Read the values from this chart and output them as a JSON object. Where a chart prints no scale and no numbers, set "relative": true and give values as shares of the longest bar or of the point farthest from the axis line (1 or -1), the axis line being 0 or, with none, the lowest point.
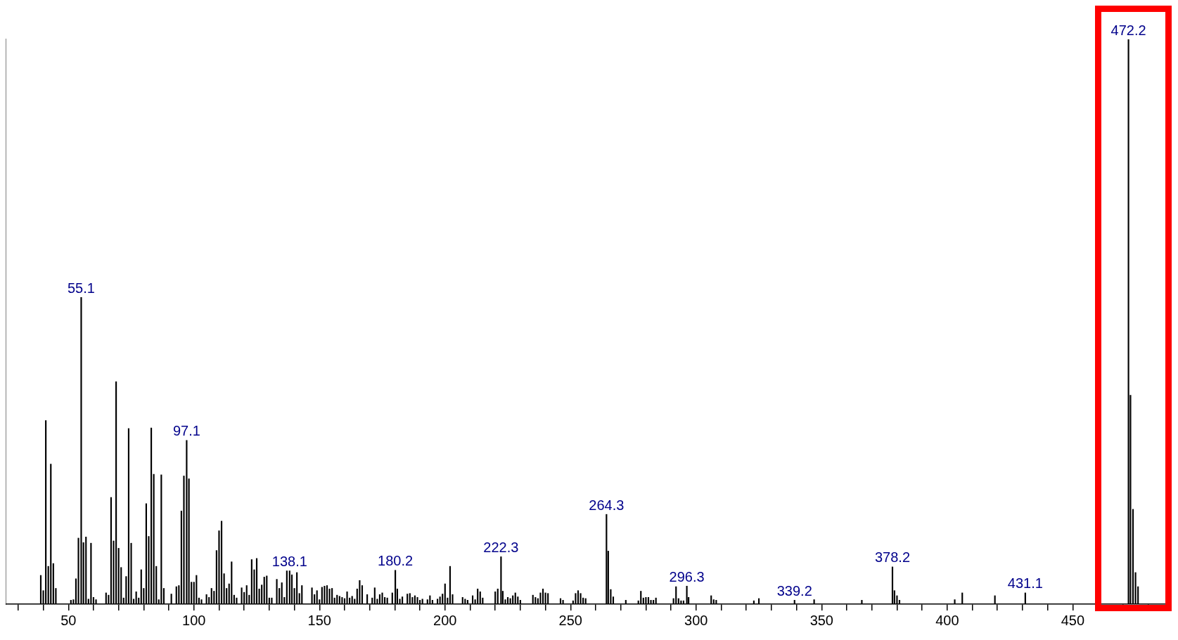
{
  "chart_data": {
    "type": "bar",
    "relative": true,
    "color": "#000000",
    "annotations": [
      {
        "text": "55.1",
        "x": 55.1,
        "y": 0.543
      },
      {
        "text": "97.1",
        "x": 97.1,
        "y": 0.29
      },
      {
        "text": "138.1",
        "x": 138.1,
        "y": 0.059
      },
      {
        "text": "180.2",
        "x": 180.2,
        "y": 0.06
      },
      {
        "text": "222.3",
        "x": 222.3,
        "y": 0.084
      },
      {
        "text": "264.3",
        "x": 264.3,
        "y": 0.159
      },
      {
        "text": "296.3",
        "x": 296.3,
        "y": 0.032
      },
      {
        "text": "339.2",
        "x": 339.2,
        "y": 0.007
      },
      {
        "text": "378.2",
        "x": 378.2,
        "y": 0.066
      },
      {
        "text": "431.1",
        "x": 431.1,
        "y": 0.02
      },
      {
        "text": "472.2",
        "x": 472.2,
        "y": 1
      }
    ],
    "x": [
      39,
      40,
      41,
      42,
      43,
      44,
      45,
      51,
      52,
      53,
      54,
      55.1,
      56,
      57,
      58,
      59,
      60,
      61,
      65,
      66,
      67,
      68,
      69,
      70,
      71,
      72,
      73,
      74,
      75,
      76,
      77,
      78,
      79,
      80,
      81,
      82,
      83,
      84,
      85,
      86,
      87,
      88,
      91,
      93,
      94,
      95,
      96,
      97.1,
      98,
      99,
      100,
      101,
      102,
      103,
      105,
      106,
      107,
      108,
      109,
      110,
      111,
      112,
      113,
      114,
      115,
      116,
      117,
      119,
      120,
      121,
      122,
      123,
      124,
      125,
      126,
      127,
      128,
      129,
      130,
      131,
      133,
      134,
      135,
      136,
      137,
      138.1,
      139,
      140,
      141,
      142,
      143,
      147,
      148,
      149,
      150,
      151,
      152,
      153,
      154,
      155,
      156,
      157,
      158,
      159,
      160,
      161,
      162,
      163,
      164,
      165,
      166,
      167,
      169,
      171,
      172,
      173,
      174,
      175,
      176,
      177,
      179,
      180.2,
      181,
      182,
      183,
      185,
      186,
      187,
      188,
      189,
      190,
      191,
      193,
      194,
      195,
      197,
      198,
      199,
      200,
      201,
      202,
      203,
      207,
      208,
      209,
      211,
      212,
      213,
      214,
      215,
      220,
      221,
      222.3,
      223,
      224,
      225,
      226,
      227,
      228,
      229,
      230,
      235,
      236,
      237,
      238,
      239,
      240,
      241,
      246,
      247,
      251,
      252,
      253,
      254,
      255,
      256,
      264.3,
      265,
      266,
      267,
      272,
      277,
      278,
      279,
      280,
      281,
      282,
      283,
      284,
      291,
      292,
      293,
      294,
      295,
      296.3,
      297,
      306,
      307,
      308,
      323,
      325,
      339.2,
      347,
      366,
      378.2,
      379,
      380,
      381,
      403,
      406,
      419,
      431.1,
      472.2,
      473,
      474,
      475,
      476
    ],
    "values": [
      0.051,
      0.024,
      0.325,
      0.067,
      0.248,
      0.072,
      0.028,
      0.007,
      0.008,
      0.045,
      0.117,
      0.543,
      0.109,
      0.119,
      0.009,
      0.108,
      0.012,
      0.008,
      0.02,
      0.016,
      0.189,
      0.112,
      0.394,
      0.099,
      0.065,
      0.011,
      0.049,
      0.311,
      0.108,
      0.009,
      0.022,
      0.011,
      0.061,
      0.028,
      0.178,
      0.12,
      0.312,
      0.23,
      0.067,
      0.008,
      0.229,
      0.028,
      0.018,
      0.031,
      0.033,
      0.165,
      0.227,
      0.29,
      0.222,
      0.039,
      0.039,
      0.051,
      0.011,
      0.008,
      0.017,
      0.012,
      0.028,
      0.023,
      0.095,
      0.13,
      0.147,
      0.054,
      0.028,
      0.036,
      0.075,
      0.016,
      0.011,
      0.029,
      0.021,
      0.033,
      0.016,
      0.079,
      0.061,
      0.081,
      0.027,
      0.034,
      0.048,
      0.05,
      0.011,
      0.011,
      0.044,
      0.028,
      0.038,
      0.012,
      0.059,
      0.059,
      0.052,
      0.028,
      0.056,
      0.019,
      0.033,
      0.029,
      0.017,
      0.024,
      0.008,
      0.03,
      0.032,
      0.033,
      0.027,
      0.028,
      0.011,
      0.016,
      0.014,
      0.012,
      0.01,
      0.022,
      0.011,
      0.014,
      0.009,
      0.027,
      0.042,
      0.033,
      0.017,
      0.011,
      0.029,
      0.009,
      0.017,
      0.02,
      0.012,
      0.011,
      0.02,
      0.06,
      0.027,
      0.009,
      0.013,
      0.018,
      0.019,
      0.012,
      0.015,
      0.012,
      0.007,
      0.009,
      0.008,
      0.015,
      0.007,
      0.009,
      0.013,
      0.018,
      0.036,
      0.011,
      0.067,
      0.017,
      0.012,
      0.009,
      0.007,
      0.015,
      0.008,
      0.027,
      0.022,
      0.011,
      0.022,
      0.027,
      0.084,
      0.023,
      0.008,
      0.012,
      0.01,
      0.015,
      0.02,
      0.013,
      0.007,
      0.016,
      0.012,
      0.01,
      0.02,
      0.027,
      0.02,
      0.019,
      0.01,
      0.007,
      0.006,
      0.019,
      0.024,
      0.019,
      0.011,
      0.01,
      0.159,
      0.094,
      0.026,
      0.013,
      0.007,
      0.006,
      0.023,
      0.011,
      0.012,
      0.012,
      0.007,
      0.007,
      0.011,
      0.01,
      0.031,
      0.01,
      0.006,
      0.006,
      0.032,
      0.012,
      0.015,
      0.008,
      0.007,
      0.006,
      0.01,
      0.007,
      0.008,
      0.007,
      0.066,
      0.024,
      0.015,
      0.007,
      0.008,
      0.02,
      0.015,
      0.02,
      1,
      0.37,
      0.168,
      0.056,
      0.031
    ],
    "xlim": [
      25,
      488
    ],
    "xticks": [
      {
        "value": 30,
        "label": null
      },
      {
        "value": 40,
        "label": null
      },
      50,
      {
        "value": 60,
        "label": null
      },
      {
        "value": 70,
        "label": null
      },
      {
        "value": 80,
        "label": null
      },
      {
        "value": 90,
        "label": null
      },
      100,
      {
        "value": 110,
        "label": null
      },
      {
        "value": 120,
        "label": null
      },
      {
        "value": 130,
        "label": null
      },
      {
        "value": 140,
        "label": null
      },
      150,
      {
        "value": 160,
        "label": null
      },
      {
        "value": 170,
        "label": null
      },
      {
        "value": 180,
        "label": null
      },
      {
        "value": 190,
        "label": null
      },
      200,
      {
        "value": 210,
        "label": null
      },
      {
        "value": 220,
        "label": null
      },
      {
        "value": 230,
        "label": null
      },
      {
        "value": 240,
        "label": null
      },
      250,
      {
        "value": 260,
        "label": null
      },
      {
        "value": 270,
        "label": null
      },
      {
        "value": 280,
        "label": null
      },
      {
        "value": 290,
        "label": null
      },
      300,
      {
        "value": 310,
        "label": null
      },
      {
        "value": 320,
        "label": null
      },
      {
        "value": 330,
        "label": null
      },
      {
        "value": 340,
        "label": null
      },
      350,
      {
        "value": 360,
        "label": null
      },
      {
        "value": 370,
        "label": null
      },
      {
        "value": 380,
        "label": null
      },
      {
        "value": 390,
        "label": null
      },
      400,
      {
        "value": 410,
        "label": null
      },
      {
        "value": 420,
        "label": null
      },
      {
        "value": 430,
        "label": null
      },
      {
        "value": 440,
        "label": null
      },
      450,
      {
        "value": 460,
        "label": null
      },
      {
        "value": 470,
        "label": null
      },
      {
        "value": 480,
        "label": null
      }
    ],
    "grid": false,
    "legend": false
  }
}
